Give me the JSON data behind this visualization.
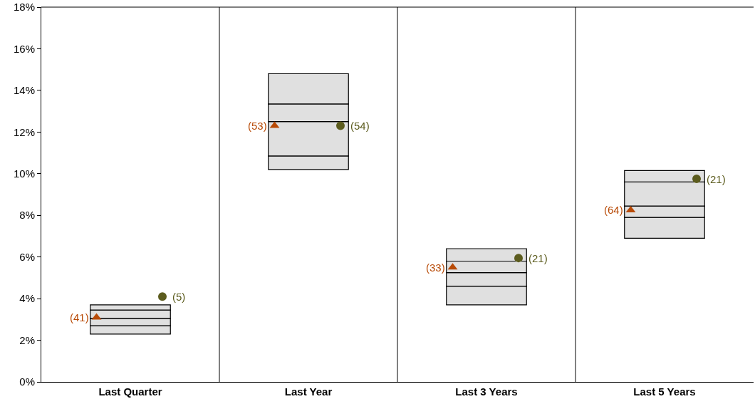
{
  "chart_data": {
    "type": "bar",
    "categories": [
      "Last Quarter",
      "Last Year",
      "Last 3 Years",
      "Last 5 Years"
    ],
    "series": [
      {
        "color": "#e0e0e0",
        "base": [
          2.3,
          10.2,
          3.7,
          6.9
        ],
        "values": [
          0.4,
          0.65,
          0.9,
          1.0
        ]
      },
      {
        "color": "#e0e0e0",
        "base": [
          2.7,
          10.85,
          4.6,
          7.9
        ],
        "values": [
          0.35,
          1.65,
          0.65,
          0.55
        ]
      },
      {
        "color": "#e0e0e0",
        "base": [
          3.05,
          12.5,
          5.25,
          8.45
        ],
        "values": [
          0.4,
          0.85,
          0.55,
          1.15
        ]
      },
      {
        "color": "#e0e0e0",
        "base": [
          3.45,
          13.35,
          5.8,
          9.6
        ],
        "values": [
          0.25,
          1.45,
          0.6,
          0.55
        ]
      },
      {
        "type": "scatter",
        "marker": "triangle",
        "color": "#b84a06",
        "x": [
          "Last Quarter",
          "Last Year",
          "Last 3 Years",
          "Last 5 Years"
        ],
        "values": [
          3.1,
          12.3,
          5.5,
          8.25
        ]
      },
      {
        "type": "scatter",
        "marker": "circle",
        "color": "#5c5c1e",
        "x": [
          "Last Quarter",
          "Last Year",
          "Last 3 Years",
          "Last 5 Years"
        ],
        "values": [
          4.1,
          12.3,
          5.95,
          9.75
        ]
      }
    ],
    "annotations": [
      "(41)",
      "(53)",
      "(33)",
      "(64)",
      "(5)",
      "(54)",
      "(21)",
      "(21)"
    ],
    "ylim": [
      0,
      18
    ],
    "yticks": [
      {
        "value": 0,
        "label": "0%"
      },
      {
        "value": 2,
        "label": "2%"
      },
      {
        "value": 4,
        "label": "4%"
      },
      {
        "value": 6,
        "label": "6%"
      },
      {
        "value": 8,
        "label": "8%"
      },
      {
        "value": 10,
        "label": "10%"
      },
      {
        "value": 12,
        "label": "12%"
      },
      {
        "value": 14,
        "label": "14%"
      },
      {
        "value": 16,
        "label": "16%"
      },
      {
        "value": 18,
        "label": "18%"
      }
    ]
  }
}
